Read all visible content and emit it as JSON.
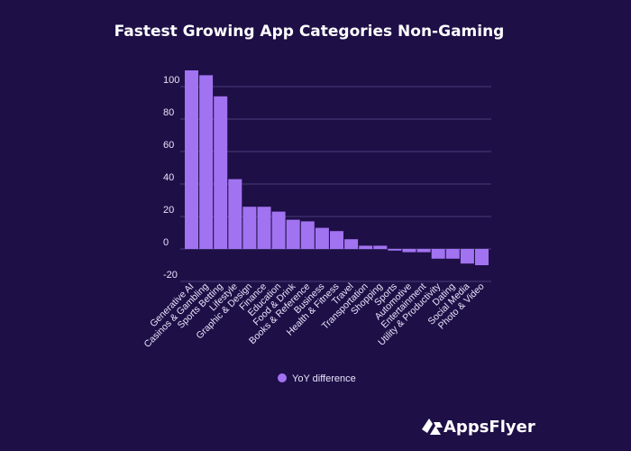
{
  "chart_data": {
    "type": "bar",
    "title": "Fastest Growing App Categories Non-Gaming",
    "xlabel": "",
    "ylabel": "",
    "ylim": [
      -20,
      110
    ],
    "yticks": [
      -20,
      0,
      20,
      40,
      60,
      80,
      100
    ],
    "grid": true,
    "legend_position": "bottom-center",
    "bar_color": "#a173f0",
    "categories": [
      "Generative AI",
      "Casinos & Gambling",
      "Sports Betting",
      "Lifestyle",
      "Graphic & Design",
      "Finance",
      "Education",
      "Food & Drink",
      "Books & Reference",
      "Business",
      "Health & Fitness",
      "Travel",
      "Transportation",
      "Shopping",
      "Sports",
      "Automotive",
      "Entertainment",
      "Utility & Productivity",
      "Dating",
      "Social Media",
      "Photo & Video"
    ],
    "series": [
      {
        "name": "YoY difference",
        "values": [
          110,
          107,
          94,
          43,
          26,
          26,
          23,
          18,
          17,
          13,
          11,
          6,
          2,
          2,
          -1,
          -2,
          -2,
          -6,
          -6,
          -9,
          -10
        ]
      }
    ]
  },
  "branding": {
    "logo_text": "AppsFlyer"
  }
}
